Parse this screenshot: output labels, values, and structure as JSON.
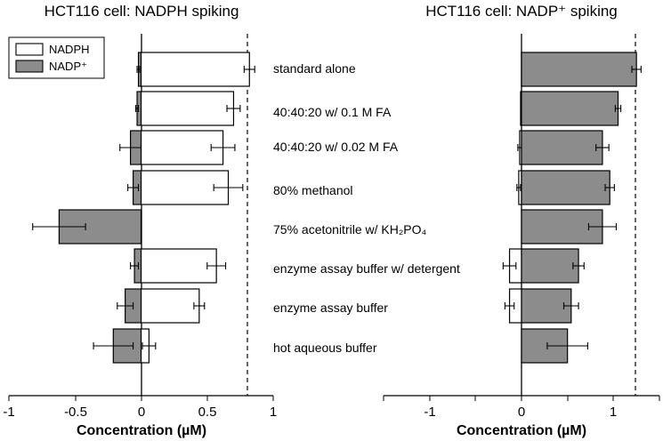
{
  "colors": {
    "nadph_fill": "#ffffff",
    "nadp_fill": "#8c8c8c",
    "stroke": "#000000",
    "reference_line": "#000000"
  },
  "legend": {
    "nadph_label": "NADPH",
    "nadp_label": "NADP⁺"
  },
  "categories": [
    "standard alone",
    "40:40:20 w/ 0.1 M FA",
    "40:40:20 w/ 0.02 M FA",
    "80% methanol",
    "75% acetonitrile w/ KH₂PO₄",
    "enzyme assay buffer w/ detergent",
    "enzyme assay buffer",
    "hot aqueous buffer"
  ],
  "chart_data": [
    {
      "type": "bar",
      "orientation": "horizontal",
      "title": "HCT116 cell: NADPH spiking",
      "xlabel": "Concentration (µM)",
      "xlim": [
        -1,
        1
      ],
      "xticks": [
        "-1",
        "-0.5",
        "0",
        "0.5",
        "1"
      ],
      "reference_line": 0.8,
      "legend_position": "top-left",
      "series": [
        {
          "name": "NADPH",
          "values": [
            0.82,
            0.7,
            0.62,
            0.66,
            null,
            0.57,
            0.44,
            0.06
          ],
          "errors": [
            0.04,
            0.05,
            0.09,
            0.11,
            null,
            0.07,
            0.04,
            0.05
          ]
        },
        {
          "name": "NADP⁺",
          "values": [
            -0.02,
            -0.03,
            -0.08,
            -0.06,
            -0.62,
            -0.05,
            -0.12,
            -0.21
          ],
          "errors": [
            0.01,
            0.01,
            0.08,
            0.04,
            0.2,
            0.03,
            0.06,
            0.15
          ]
        }
      ]
    },
    {
      "type": "bar",
      "orientation": "horizontal",
      "title": "HCT116 cell: NADP⁺ spiking",
      "xlabel": "Concentration (µM)",
      "xlim": [
        -1.5,
        1.5
      ],
      "xticks": [
        "-1",
        "0",
        "1"
      ],
      "reference_line": 1.25,
      "series": [
        {
          "name": "NADPH",
          "values": [
            0.0,
            -0.01,
            -0.02,
            -0.03,
            null,
            -0.13,
            -0.13,
            null
          ],
          "errors": [
            0.0,
            0.0,
            0.02,
            0.02,
            null,
            0.07,
            0.05,
            null
          ]
        },
        {
          "name": "NADP⁺",
          "values": [
            1.25,
            1.05,
            0.88,
            0.96,
            0.88,
            0.62,
            0.54,
            0.5
          ],
          "errors": [
            0.05,
            0.03,
            0.07,
            0.05,
            0.15,
            0.06,
            0.08,
            0.22
          ]
        }
      ]
    }
  ]
}
